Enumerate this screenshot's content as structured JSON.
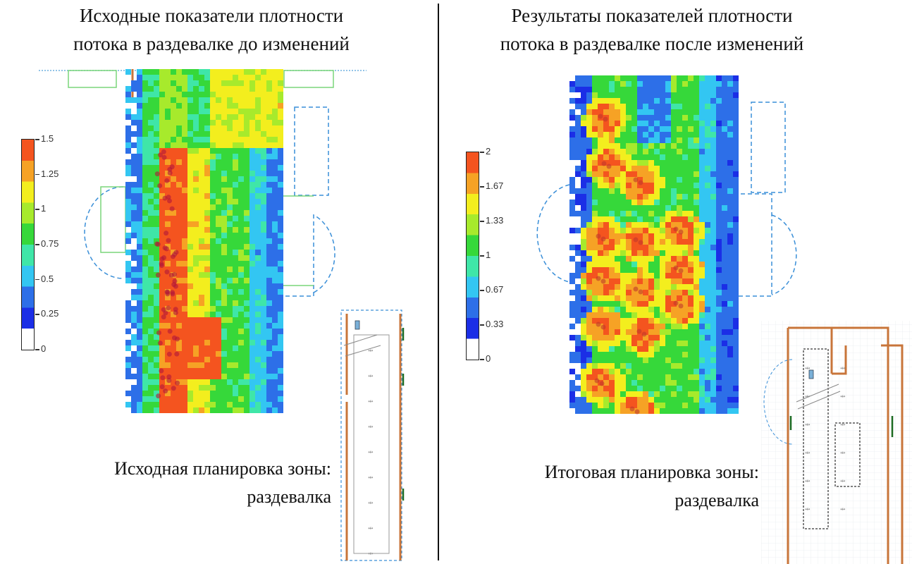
{
  "left": {
    "title_line1": "Исходные показатели плотности",
    "title_line2": "потока в раздевалке до изменений",
    "caption_line1": "Исходная планировка зоны:",
    "caption_line2": "раздевалка",
    "colorbar": {
      "max": 1.5,
      "ticks": [
        "1.5",
        "1.25",
        "1",
        "0.75",
        "0.5",
        "0.25",
        "0"
      ]
    }
  },
  "right": {
    "title_line1": "Результаты показателей плотности",
    "title_line2": "потока в раздевалке после изменений",
    "caption_line1": "Итоговая планировка зоны:",
    "caption_line2": "раздевалка",
    "colorbar": {
      "max": 2,
      "ticks": [
        "2",
        "1.67",
        "1.33",
        "1",
        "0.67",
        "0.33",
        "0"
      ]
    }
  },
  "colormap": [
    "#ffffff",
    "#1b2ee6",
    "#2d6fe8",
    "#33c6f2",
    "#3fe6a8",
    "#36d83a",
    "#a7ea2c",
    "#f3ee1e",
    "#f6a225",
    "#f4541f"
  ],
  "colors": {
    "wall": "#c8753a",
    "plan_line": "#3a8fd8",
    "door": "#3cc86a"
  }
}
